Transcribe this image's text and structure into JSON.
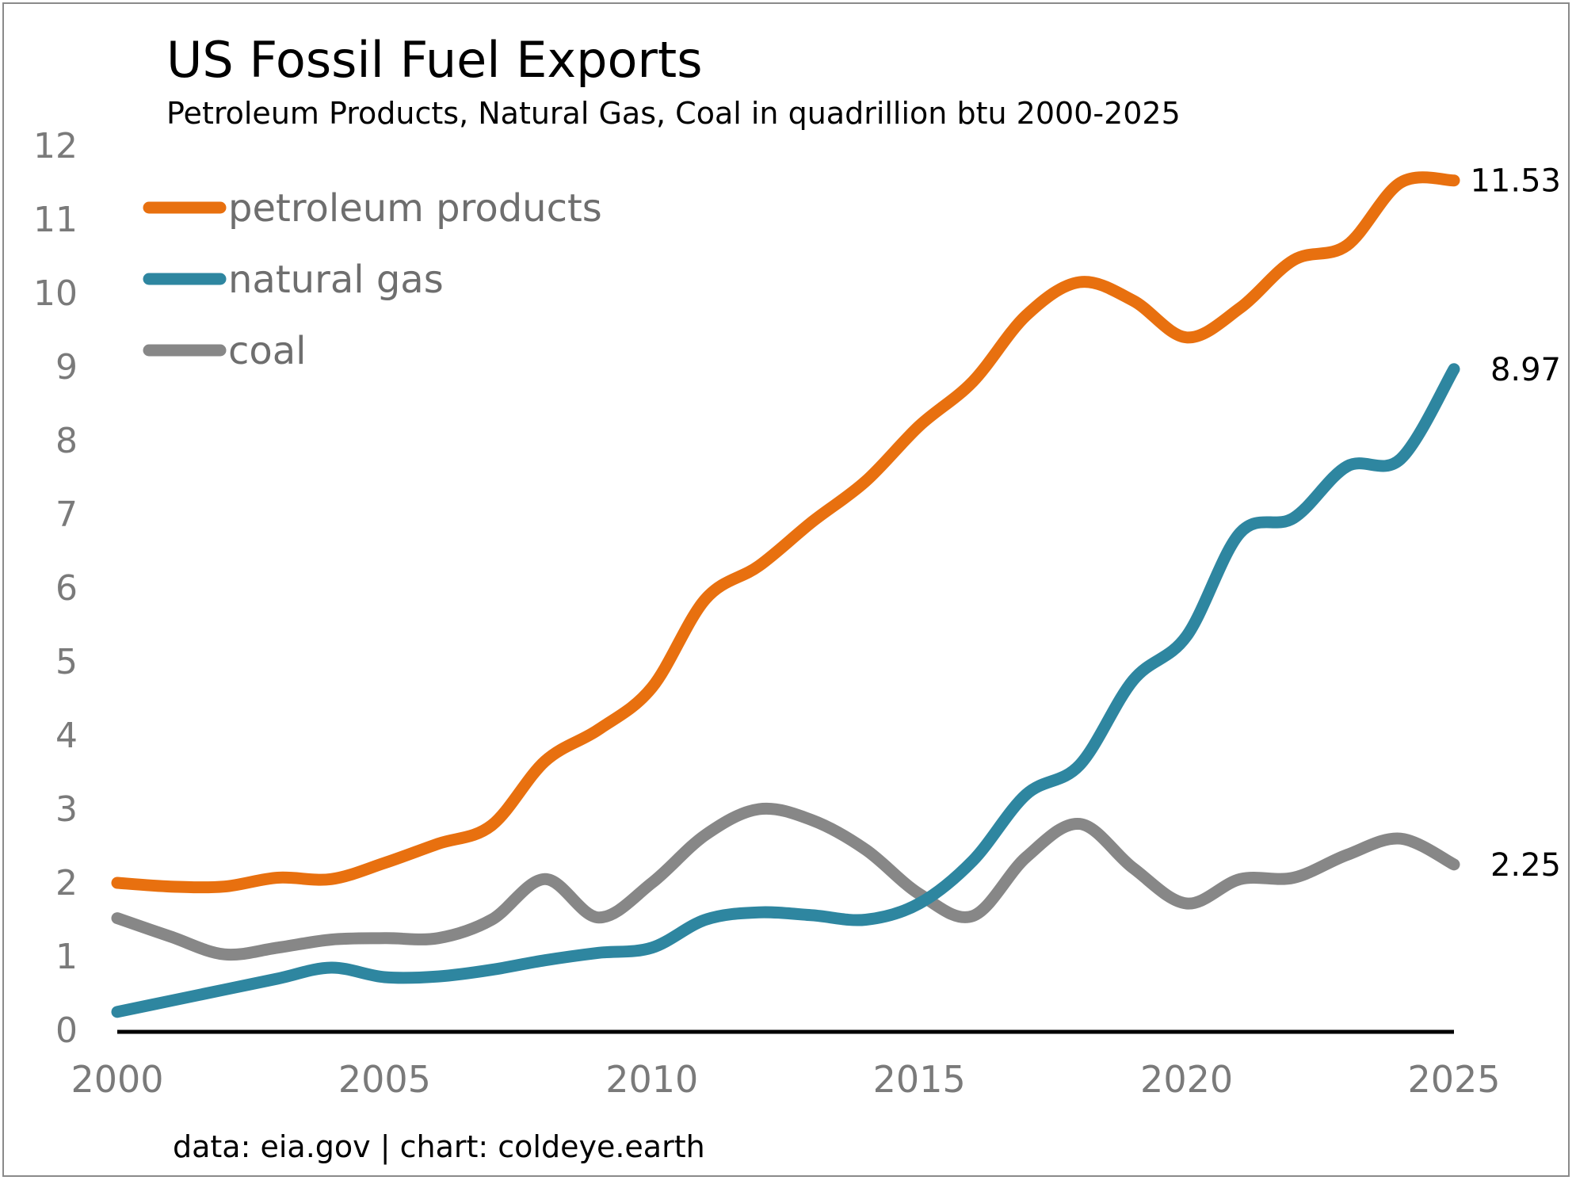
{
  "chart_data": {
    "type": "line",
    "title": "US Fossil Fuel Exports",
    "subtitle": "Petroleum Products, Natural Gas, Coal in quadrillion btu 2000-2025",
    "source": "data: eia.gov | chart: coldeye.earth",
    "x": [
      2000,
      2001,
      2002,
      2003,
      2004,
      2005,
      2006,
      2007,
      2008,
      2009,
      2010,
      2011,
      2012,
      2013,
      2014,
      2015,
      2016,
      2017,
      2018,
      2019,
      2020,
      2021,
      2022,
      2023,
      2024,
      2025
    ],
    "xlim": [
      2000,
      2025
    ],
    "ylim": [
      0,
      12
    ],
    "x_ticks": [
      "2000",
      "2005",
      "2010",
      "2015",
      "2020",
      "2025"
    ],
    "y_ticks": [
      "0",
      "1",
      "2",
      "3",
      "4",
      "5",
      "6",
      "7",
      "8",
      "9",
      "10",
      "11",
      "12"
    ],
    "grid": false,
    "legend_position": "top-left",
    "series": [
      {
        "name": "petroleum products",
        "color": "#e8700f",
        "end_label": "11.53",
        "values": [
          2.0,
          1.95,
          1.95,
          2.07,
          2.05,
          2.27,
          2.53,
          2.78,
          3.65,
          4.08,
          4.65,
          5.85,
          6.3,
          6.9,
          7.45,
          8.2,
          8.8,
          9.7,
          10.15,
          9.9,
          9.4,
          9.8,
          10.45,
          10.65,
          11.5,
          11.53
        ]
      },
      {
        "name": "natural gas",
        "color": "#2e86a0",
        "end_label": "8.97",
        "values": [
          0.25,
          0.4,
          0.55,
          0.7,
          0.85,
          0.72,
          0.73,
          0.82,
          0.95,
          1.05,
          1.12,
          1.5,
          1.6,
          1.56,
          1.5,
          1.72,
          2.3,
          3.2,
          3.6,
          4.75,
          5.35,
          6.75,
          6.95,
          7.65,
          7.75,
          8.97
        ]
      },
      {
        "name": "coal",
        "color": "#878787",
        "end_label": "2.25",
        "values": [
          1.52,
          1.27,
          1.03,
          1.12,
          1.23,
          1.25,
          1.25,
          1.5,
          2.05,
          1.53,
          2.0,
          2.65,
          3.0,
          2.85,
          2.45,
          1.85,
          1.55,
          2.35,
          2.8,
          2.2,
          1.72,
          2.05,
          2.07,
          2.38,
          2.6,
          2.25
        ]
      }
    ]
  }
}
